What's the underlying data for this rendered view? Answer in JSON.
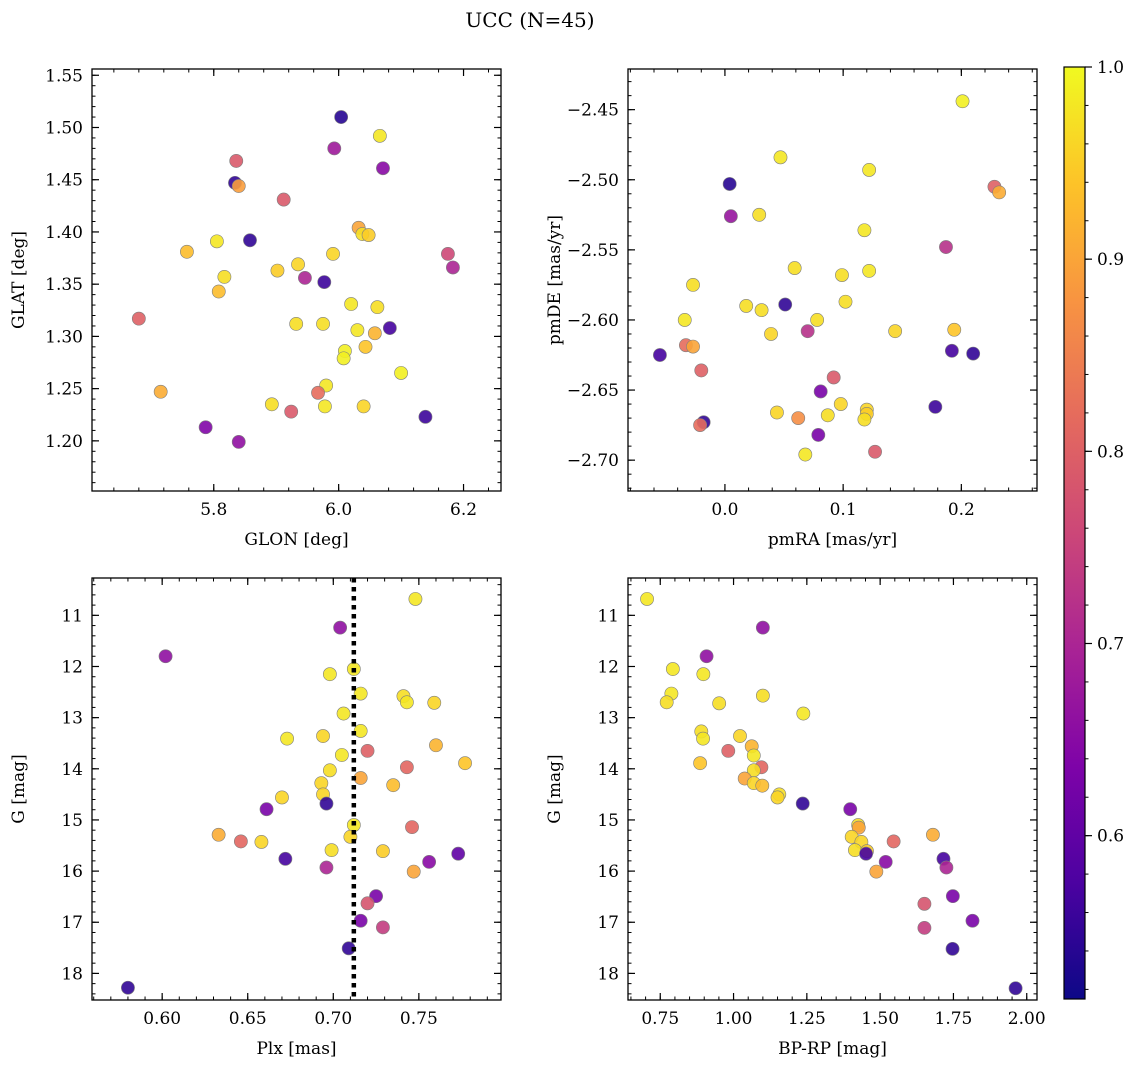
{
  "figure": {
    "title": "UCC (N=45)",
    "colorbar": {
      "colormap": "plasma",
      "range": [
        0.515,
        1.0
      ],
      "ticks": [
        0.6,
        0.7,
        0.8,
        0.9,
        1.0
      ],
      "tick_labels": [
        "0.6",
        "0.7",
        "0.8",
        "0.9",
        "1.0"
      ]
    },
    "marker_edge_color": "#7f7f7f"
  },
  "chart_data": [
    {
      "type": "scatter",
      "xlabel": "GLON [deg]",
      "ylabel": "GLAT [deg]",
      "xlim": [
        5.605,
        6.26
      ],
      "ylim": [
        1.152,
        1.556
      ],
      "xticks": [
        5.8,
        6.0,
        6.2
      ],
      "xtick_labels": [
        "5.8",
        "6.0",
        "6.2"
      ],
      "yticks": [
        1.2,
        1.25,
        1.3,
        1.35,
        1.4,
        1.45,
        1.5,
        1.55
      ],
      "ytick_labels": [
        "1.20",
        "1.25",
        "1.30",
        "1.35",
        "1.40",
        "1.45",
        "1.50",
        "1.55"
      ],
      "points": [
        {
          "x": 6.004,
          "y": 1.51,
          "c": 0.54
        },
        {
          "x": 6.066,
          "y": 1.492,
          "c": 0.98
        },
        {
          "x": 5.993,
          "y": 1.48,
          "c": 0.68
        },
        {
          "x": 5.836,
          "y": 1.468,
          "c": 0.79
        },
        {
          "x": 6.071,
          "y": 1.461,
          "c": 0.65
        },
        {
          "x": 5.834,
          "y": 1.447,
          "c": 0.55
        },
        {
          "x": 5.84,
          "y": 1.444,
          "c": 0.89
        },
        {
          "x": 5.912,
          "y": 1.431,
          "c": 0.79
        },
        {
          "x": 6.032,
          "y": 1.404,
          "c": 0.9
        },
        {
          "x": 6.038,
          "y": 1.398,
          "c": 0.97
        },
        {
          "x": 6.048,
          "y": 1.397,
          "c": 0.95
        },
        {
          "x": 5.858,
          "y": 1.392,
          "c": 0.55
        },
        {
          "x": 5.805,
          "y": 1.391,
          "c": 0.98
        },
        {
          "x": 5.757,
          "y": 1.381,
          "c": 0.93
        },
        {
          "x": 5.991,
          "y": 1.379,
          "c": 0.96
        },
        {
          "x": 6.175,
          "y": 1.379,
          "c": 0.76
        },
        {
          "x": 5.935,
          "y": 1.369,
          "c": 0.96
        },
        {
          "x": 6.183,
          "y": 1.366,
          "c": 0.7
        },
        {
          "x": 5.902,
          "y": 1.363,
          "c": 0.95
        },
        {
          "x": 5.817,
          "y": 1.357,
          "c": 0.97
        },
        {
          "x": 5.946,
          "y": 1.356,
          "c": 0.7
        },
        {
          "x": 5.977,
          "y": 1.352,
          "c": 0.56
        },
        {
          "x": 5.808,
          "y": 1.343,
          "c": 0.93
        },
        {
          "x": 6.02,
          "y": 1.331,
          "c": 0.98
        },
        {
          "x": 6.062,
          "y": 1.328,
          "c": 0.97
        },
        {
          "x": 5.68,
          "y": 1.317,
          "c": 0.8
        },
        {
          "x": 5.932,
          "y": 1.312,
          "c": 0.97
        },
        {
          "x": 5.975,
          "y": 1.312,
          "c": 0.97
        },
        {
          "x": 6.082,
          "y": 1.308,
          "c": 0.57
        },
        {
          "x": 6.03,
          "y": 1.306,
          "c": 0.98
        },
        {
          "x": 6.058,
          "y": 1.303,
          "c": 0.92
        },
        {
          "x": 6.043,
          "y": 1.29,
          "c": 0.94
        },
        {
          "x": 6.01,
          "y": 1.286,
          "c": 0.99
        },
        {
          "x": 6.008,
          "y": 1.279,
          "c": 0.99
        },
        {
          "x": 6.1,
          "y": 1.265,
          "c": 0.99
        },
        {
          "x": 5.98,
          "y": 1.253,
          "c": 0.98
        },
        {
          "x": 5.967,
          "y": 1.246,
          "c": 0.82
        },
        {
          "x": 5.715,
          "y": 1.247,
          "c": 0.91
        },
        {
          "x": 5.893,
          "y": 1.235,
          "c": 0.97
        },
        {
          "x": 5.978,
          "y": 1.233,
          "c": 0.98
        },
        {
          "x": 6.04,
          "y": 1.233,
          "c": 0.96
        },
        {
          "x": 5.924,
          "y": 1.228,
          "c": 0.79
        },
        {
          "x": 6.139,
          "y": 1.223,
          "c": 0.56
        },
        {
          "x": 5.787,
          "y": 1.213,
          "c": 0.64
        },
        {
          "x": 5.84,
          "y": 1.199,
          "c": 0.66
        }
      ]
    },
    {
      "type": "scatter",
      "xlabel": "pmRA [mas/yr]",
      "ylabel": "pmDE [mas/yr]",
      "xlim": [
        -0.082,
        0.264
      ],
      "ylim": [
        -2.722,
        -2.421
      ],
      "xticks": [
        0.0,
        0.1,
        0.2
      ],
      "xtick_labels": [
        "0.0",
        "0.1",
        "0.2"
      ],
      "yticks": [
        -2.7,
        -2.65,
        -2.6,
        -2.55,
        -2.5,
        -2.45
      ],
      "ytick_labels": [
        "−2.70",
        "−2.65",
        "−2.60",
        "−2.55",
        "−2.50",
        "−2.45"
      ],
      "points": [
        {
          "x": 0.201,
          "y": -2.444,
          "c": 0.99
        },
        {
          "x": 0.047,
          "y": -2.484,
          "c": 0.98
        },
        {
          "x": 0.122,
          "y": -2.493,
          "c": 0.98
        },
        {
          "x": 0.004,
          "y": -2.503,
          "c": 0.54
        },
        {
          "x": 0.228,
          "y": -2.505,
          "c": 0.8
        },
        {
          "x": 0.232,
          "y": -2.509,
          "c": 0.91
        },
        {
          "x": 0.029,
          "y": -2.525,
          "c": 0.97
        },
        {
          "x": 0.005,
          "y": -2.526,
          "c": 0.67
        },
        {
          "x": 0.118,
          "y": -2.536,
          "c": 0.98
        },
        {
          "x": 0.187,
          "y": -2.548,
          "c": 0.72
        },
        {
          "x": 0.059,
          "y": -2.563,
          "c": 0.97
        },
        {
          "x": 0.122,
          "y": -2.565,
          "c": 0.98
        },
        {
          "x": 0.099,
          "y": -2.568,
          "c": 0.97
        },
        {
          "x": -0.027,
          "y": -2.575,
          "c": 0.97
        },
        {
          "x": 0.102,
          "y": -2.587,
          "c": 0.97
        },
        {
          "x": 0.051,
          "y": -2.589,
          "c": 0.55
        },
        {
          "x": 0.018,
          "y": -2.59,
          "c": 0.97
        },
        {
          "x": 0.031,
          "y": -2.593,
          "c": 0.97
        },
        {
          "x": 0.078,
          "y": -2.6,
          "c": 0.97
        },
        {
          "x": -0.034,
          "y": -2.6,
          "c": 0.98
        },
        {
          "x": 0.144,
          "y": -2.608,
          "c": 0.96
        },
        {
          "x": 0.194,
          "y": -2.607,
          "c": 0.94
        },
        {
          "x": 0.07,
          "y": -2.608,
          "c": 0.72
        },
        {
          "x": 0.039,
          "y": -2.61,
          "c": 0.96
        },
        {
          "x": -0.033,
          "y": -2.618,
          "c": 0.82
        },
        {
          "x": -0.027,
          "y": -2.619,
          "c": 0.9
        },
        {
          "x": 0.192,
          "y": -2.622,
          "c": 0.57
        },
        {
          "x": -0.055,
          "y": -2.625,
          "c": 0.57
        },
        {
          "x": 0.21,
          "y": -2.624,
          "c": 0.55
        },
        {
          "x": -0.02,
          "y": -2.636,
          "c": 0.8
        },
        {
          "x": 0.092,
          "y": -2.641,
          "c": 0.79
        },
        {
          "x": 0.081,
          "y": -2.651,
          "c": 0.63
        },
        {
          "x": 0.178,
          "y": -2.662,
          "c": 0.56
        },
        {
          "x": 0.098,
          "y": -2.66,
          "c": 0.96
        },
        {
          "x": 0.12,
          "y": -2.664,
          "c": 0.96
        },
        {
          "x": 0.044,
          "y": -2.666,
          "c": 0.96
        },
        {
          "x": 0.12,
          "y": -2.667,
          "c": 0.95
        },
        {
          "x": 0.087,
          "y": -2.668,
          "c": 0.97
        },
        {
          "x": 0.062,
          "y": -2.67,
          "c": 0.87
        },
        {
          "x": 0.118,
          "y": -2.671,
          "c": 0.97
        },
        {
          "x": -0.018,
          "y": -2.673,
          "c": 0.55
        },
        {
          "x": -0.021,
          "y": -2.675,
          "c": 0.82
        },
        {
          "x": 0.079,
          "y": -2.682,
          "c": 0.63
        },
        {
          "x": 0.127,
          "y": -2.694,
          "c": 0.79
        },
        {
          "x": 0.068,
          "y": -2.696,
          "c": 0.98
        }
      ]
    },
    {
      "type": "scatter",
      "xlabel": "Plx [mas]",
      "ylabel": "G [mag]",
      "xlim": [
        0.559,
        0.798
      ],
      "ylim": [
        18.52,
        10.27
      ],
      "y_inverted": true,
      "xticks": [
        0.6,
        0.65,
        0.7,
        0.75
      ],
      "xtick_labels": [
        "0.60",
        "0.65",
        "0.70",
        "0.75"
      ],
      "yticks": [
        11,
        12,
        13,
        14,
        15,
        16,
        17,
        18
      ],
      "ytick_labels": [
        "11",
        "12",
        "13",
        "14",
        "15",
        "16",
        "17",
        "18"
      ],
      "vline": {
        "x": 0.712,
        "style": "dotted",
        "color": "#000000"
      },
      "points": [
        {
          "x": 0.748,
          "y": 10.68,
          "c": 0.98
        },
        {
          "x": 0.704,
          "y": 11.24,
          "c": 0.66
        },
        {
          "x": 0.602,
          "y": 11.8,
          "c": 0.66
        },
        {
          "x": 0.712,
          "y": 12.05,
          "c": 0.98
        },
        {
          "x": 0.698,
          "y": 12.15,
          "c": 0.98
        },
        {
          "x": 0.716,
          "y": 12.53,
          "c": 0.98
        },
        {
          "x": 0.741,
          "y": 12.58,
          "c": 0.97
        },
        {
          "x": 0.743,
          "y": 12.7,
          "c": 0.98
        },
        {
          "x": 0.759,
          "y": 12.71,
          "c": 0.96
        },
        {
          "x": 0.706,
          "y": 12.92,
          "c": 0.98
        },
        {
          "x": 0.716,
          "y": 13.26,
          "c": 0.98
        },
        {
          "x": 0.694,
          "y": 13.36,
          "c": 0.96
        },
        {
          "x": 0.673,
          "y": 13.41,
          "c": 0.98
        },
        {
          "x": 0.76,
          "y": 13.54,
          "c": 0.92
        },
        {
          "x": 0.72,
          "y": 13.65,
          "c": 0.8
        },
        {
          "x": 0.705,
          "y": 13.73,
          "c": 0.98
        },
        {
          "x": 0.777,
          "y": 13.89,
          "c": 0.94
        },
        {
          "x": 0.743,
          "y": 13.97,
          "c": 0.81
        },
        {
          "x": 0.698,
          "y": 14.03,
          "c": 0.97
        },
        {
          "x": 0.716,
          "y": 14.18,
          "c": 0.9
        },
        {
          "x": 0.693,
          "y": 14.28,
          "c": 0.96
        },
        {
          "x": 0.735,
          "y": 14.32,
          "c": 0.93
        },
        {
          "x": 0.694,
          "y": 14.5,
          "c": 0.96
        },
        {
          "x": 0.67,
          "y": 14.56,
          "c": 0.96
        },
        {
          "x": 0.696,
          "y": 14.68,
          "c": 0.55
        },
        {
          "x": 0.661,
          "y": 14.79,
          "c": 0.63
        },
        {
          "x": 0.712,
          "y": 15.1,
          "c": 0.98
        },
        {
          "x": 0.746,
          "y": 15.14,
          "c": 0.81
        },
        {
          "x": 0.633,
          "y": 15.29,
          "c": 0.91
        },
        {
          "x": 0.71,
          "y": 15.33,
          "c": 0.96
        },
        {
          "x": 0.646,
          "y": 15.42,
          "c": 0.81
        },
        {
          "x": 0.658,
          "y": 15.43,
          "c": 0.96
        },
        {
          "x": 0.699,
          "y": 15.59,
          "c": 0.97
        },
        {
          "x": 0.729,
          "y": 15.61,
          "c": 0.95
        },
        {
          "x": 0.773,
          "y": 15.66,
          "c": 0.6
        },
        {
          "x": 0.672,
          "y": 15.76,
          "c": 0.57
        },
        {
          "x": 0.756,
          "y": 15.82,
          "c": 0.65
        },
        {
          "x": 0.696,
          "y": 15.93,
          "c": 0.7
        },
        {
          "x": 0.747,
          "y": 16.01,
          "c": 0.9
        },
        {
          "x": 0.725,
          "y": 16.49,
          "c": 0.63
        },
        {
          "x": 0.72,
          "y": 16.63,
          "c": 0.78
        },
        {
          "x": 0.716,
          "y": 16.97,
          "c": 0.63
        },
        {
          "x": 0.729,
          "y": 17.1,
          "c": 0.74
        },
        {
          "x": 0.709,
          "y": 17.51,
          "c": 0.55
        },
        {
          "x": 0.58,
          "y": 18.28,
          "c": 0.55
        }
      ]
    },
    {
      "type": "scatter",
      "xlabel": "BP-RP [mag]",
      "ylabel": "G [mag]",
      "xlim": [
        0.64,
        2.035
      ],
      "ylim": [
        18.52,
        10.27
      ],
      "y_inverted": true,
      "xticks": [
        0.75,
        1.0,
        1.25,
        1.5,
        1.75,
        2.0
      ],
      "xtick_labels": [
        "0.75",
        "1.00",
        "1.25",
        "1.50",
        "1.75",
        "2.00"
      ],
      "yticks": [
        11,
        12,
        13,
        14,
        15,
        16,
        17,
        18
      ],
      "ytick_labels": [
        "11",
        "12",
        "13",
        "14",
        "15",
        "16",
        "17",
        "18"
      ],
      "points": [
        {
          "x": 0.705,
          "y": 10.68,
          "c": 0.98
        },
        {
          "x": 1.1,
          "y": 11.24,
          "c": 0.66
        },
        {
          "x": 0.908,
          "y": 11.8,
          "c": 0.66
        },
        {
          "x": 0.793,
          "y": 12.05,
          "c": 0.98
        },
        {
          "x": 0.897,
          "y": 12.15,
          "c": 0.98
        },
        {
          "x": 1.1,
          "y": 12.57,
          "c": 0.97
        },
        {
          "x": 0.788,
          "y": 12.53,
          "c": 0.98
        },
        {
          "x": 0.951,
          "y": 12.72,
          "c": 0.97
        },
        {
          "x": 0.772,
          "y": 12.7,
          "c": 0.97
        },
        {
          "x": 1.238,
          "y": 12.92,
          "c": 0.98
        },
        {
          "x": 0.89,
          "y": 13.27,
          "c": 0.97
        },
        {
          "x": 1.022,
          "y": 13.36,
          "c": 0.96
        },
        {
          "x": 0.896,
          "y": 13.41,
          "c": 0.98
        },
        {
          "x": 1.062,
          "y": 13.56,
          "c": 0.92
        },
        {
          "x": 0.982,
          "y": 13.65,
          "c": 0.8
        },
        {
          "x": 1.069,
          "y": 13.74,
          "c": 0.98
        },
        {
          "x": 0.886,
          "y": 13.89,
          "c": 0.94
        },
        {
          "x": 1.095,
          "y": 13.97,
          "c": 0.81
        },
        {
          "x": 1.069,
          "y": 14.03,
          "c": 0.97
        },
        {
          "x": 1.038,
          "y": 14.19,
          "c": 0.9
        },
        {
          "x": 1.069,
          "y": 14.28,
          "c": 0.96
        },
        {
          "x": 1.098,
          "y": 14.33,
          "c": 0.93
        },
        {
          "x": 1.156,
          "y": 14.5,
          "c": 0.97
        },
        {
          "x": 1.15,
          "y": 14.56,
          "c": 0.96
        },
        {
          "x": 1.236,
          "y": 14.68,
          "c": 0.55
        },
        {
          "x": 1.398,
          "y": 14.79,
          "c": 0.63
        },
        {
          "x": 1.425,
          "y": 15.1,
          "c": 0.97
        },
        {
          "x": 1.427,
          "y": 15.15,
          "c": 0.9
        },
        {
          "x": 1.68,
          "y": 15.29,
          "c": 0.91
        },
        {
          "x": 1.403,
          "y": 15.33,
          "c": 0.96
        },
        {
          "x": 1.546,
          "y": 15.42,
          "c": 0.81
        },
        {
          "x": 1.436,
          "y": 15.43,
          "c": 0.96
        },
        {
          "x": 1.414,
          "y": 15.59,
          "c": 0.97
        },
        {
          "x": 1.455,
          "y": 15.61,
          "c": 0.95
        },
        {
          "x": 1.452,
          "y": 15.66,
          "c": 0.57
        },
        {
          "x": 1.716,
          "y": 15.76,
          "c": 0.57
        },
        {
          "x": 1.519,
          "y": 15.82,
          "c": 0.65
        },
        {
          "x": 1.726,
          "y": 15.93,
          "c": 0.7
        },
        {
          "x": 1.487,
          "y": 16.01,
          "c": 0.9
        },
        {
          "x": 1.748,
          "y": 16.49,
          "c": 0.63
        },
        {
          "x": 1.651,
          "y": 16.64,
          "c": 0.78
        },
        {
          "x": 1.815,
          "y": 16.97,
          "c": 0.63
        },
        {
          "x": 1.651,
          "y": 17.11,
          "c": 0.74
        },
        {
          "x": 1.747,
          "y": 17.52,
          "c": 0.55
        },
        {
          "x": 1.962,
          "y": 18.29,
          "c": 0.55
        }
      ]
    }
  ]
}
